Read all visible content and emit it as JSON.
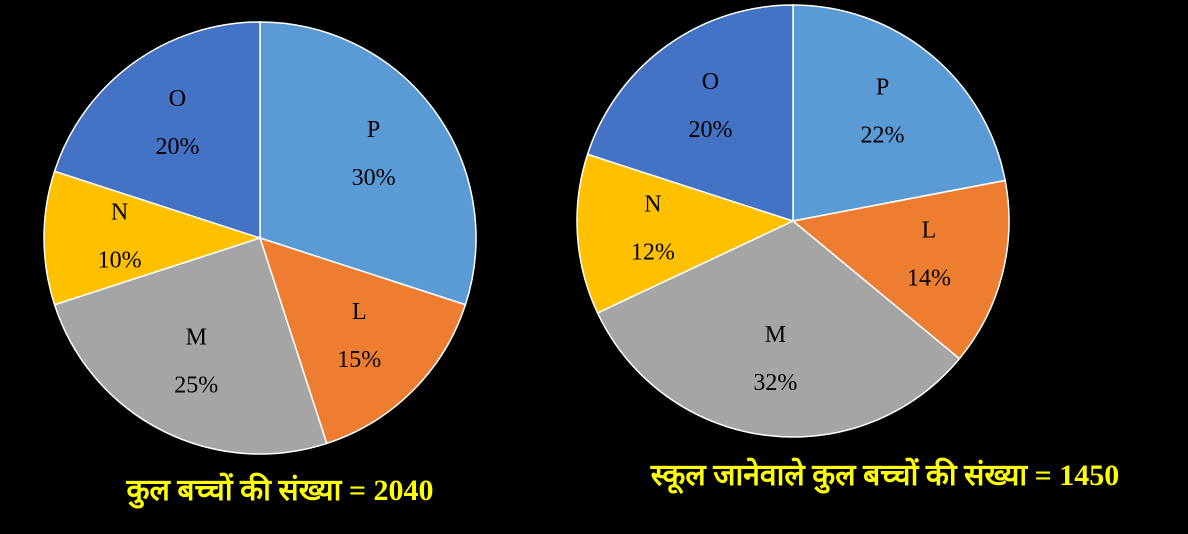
{
  "chart_data": [
    {
      "type": "pie",
      "title": "कुल बच्चों की संख्या = 2040",
      "categories": [
        "P",
        "L",
        "M",
        "N",
        "O"
      ],
      "values": [
        30,
        15,
        25,
        10,
        20
      ],
      "value_labels": [
        "30%",
        "15%",
        "25%",
        "10%",
        "20%"
      ],
      "colors": [
        "#5b9bd5",
        "#ed7d31",
        "#a5a5a5",
        "#ffc000",
        "#4472c4"
      ]
    },
    {
      "type": "pie",
      "title": "स्कूल जानेवाले कुल बच्चों की संख्या = 1450",
      "categories": [
        "P",
        "L",
        "M",
        "N",
        "O"
      ],
      "values": [
        22,
        14,
        32,
        12,
        20
      ],
      "value_labels": [
        "22%",
        "14%",
        "32%",
        "12%",
        "20%"
      ],
      "colors": [
        "#5b9bd5",
        "#ed7d31",
        "#a5a5a5",
        "#ffc000",
        "#4472c4"
      ]
    }
  ]
}
